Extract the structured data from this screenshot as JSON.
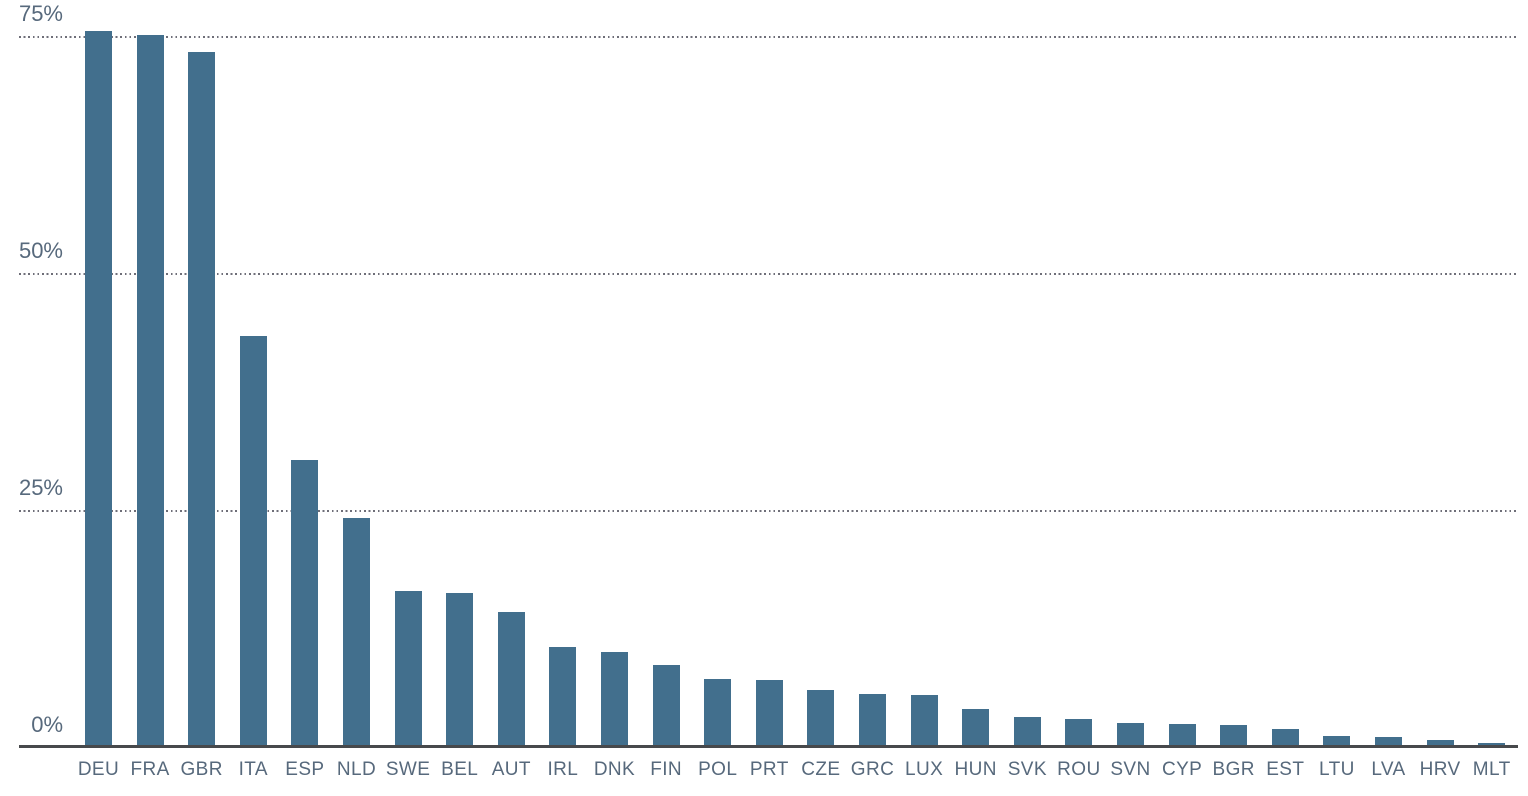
{
  "chart_data": {
    "type": "bar",
    "title": "",
    "xlabel": "",
    "ylabel": "",
    "unit": "%",
    "categories": [
      "DEU",
      "FRA",
      "GBR",
      "ITA",
      "ESP",
      "NLD",
      "SWE",
      "BEL",
      "AUT",
      "IRL",
      "DNK",
      "FIN",
      "POL",
      "PRT",
      "CZE",
      "GRC",
      "LUX",
      "HUN",
      "SVK",
      "ROU",
      "SVN",
      "CYP",
      "BGR",
      "EST",
      "LTU",
      "LVA",
      "HRV",
      "MLT"
    ],
    "values": [
      75.6,
      75.2,
      73.4,
      43.4,
      30.4,
      24.3,
      16.6,
      16.3,
      14.3,
      10.7,
      10.1,
      8.7,
      7.3,
      7.2,
      6.1,
      5.7,
      5.6,
      4.1,
      3.3,
      3.1,
      2.6,
      2.5,
      2.4,
      2.0,
      1.3,
      1.2,
      0.8,
      0.5
    ],
    "ylim": [
      0,
      78.5
    ],
    "yticks": [
      {
        "value": 75,
        "label": "75%"
      },
      {
        "value": 50,
        "label": "50%"
      },
      {
        "value": 25,
        "label": "25%"
      },
      {
        "value": 0,
        "label": "0%"
      }
    ],
    "grid": "horizontal-dotted",
    "legend": "none",
    "colors": {
      "bar": "#426f8d",
      "axis_line": "#47494c",
      "gridline": "#6e6e78",
      "tick_label": "#57697c",
      "category_label": "#57697c",
      "background": "#ffffff"
    }
  }
}
